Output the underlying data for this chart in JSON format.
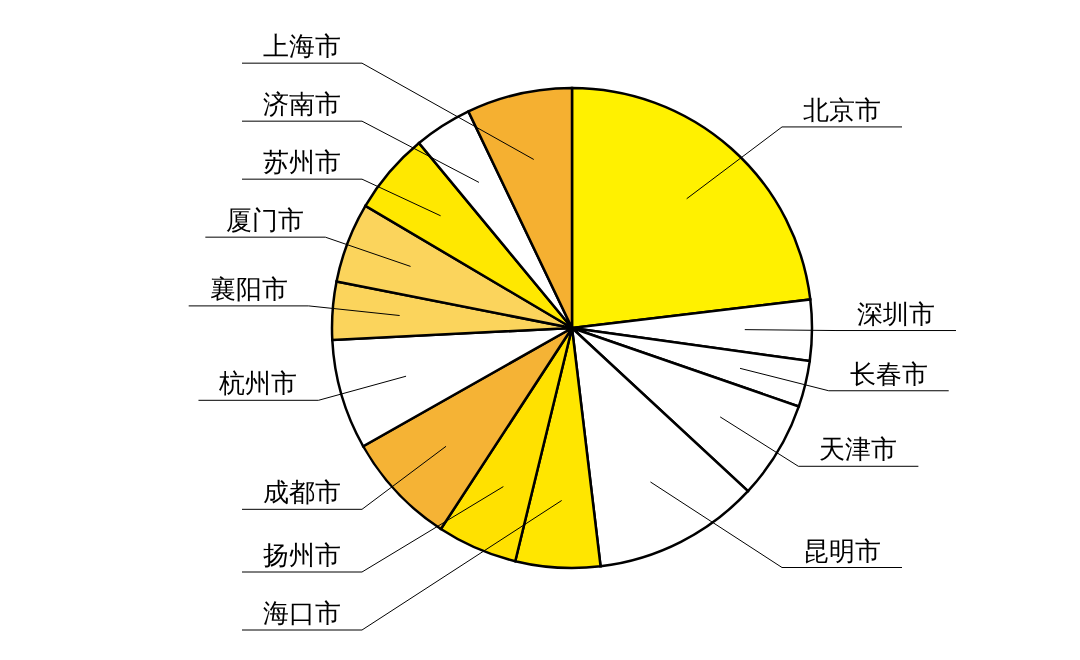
{
  "chart_data": {
    "type": "pie",
    "categories": [
      "北京市",
      "深圳市",
      "长春市",
      "天津市",
      "昆明市",
      "海口市",
      "扬州市",
      "成都市",
      "杭州市",
      "襄阳市",
      "厦门市",
      "苏州市",
      "济南市",
      "上海市"
    ],
    "values": [
      23.1,
      4.1,
      3.1,
      6.6,
      11.2,
      5.7,
      5.4,
      7.6,
      7.4,
      3.9,
      5.4,
      5.5,
      3.9,
      7.1
    ],
    "colors": [
      "#fff100",
      "#ffffff",
      "#ffffff",
      "#ffffff",
      "#ffffff",
      "#ffe600",
      "#ffe100",
      "#f5b335",
      "#ffffff",
      "#fbd45c",
      "#fbd45c",
      "#ffe800",
      "#ffffff",
      "#f5b031"
    ],
    "title": null
  }
}
